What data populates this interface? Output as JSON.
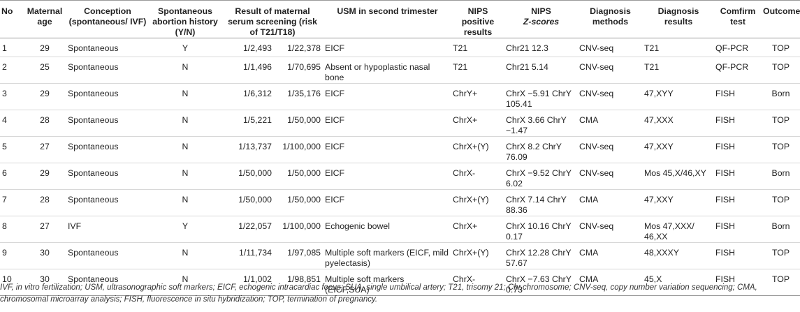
{
  "columns": [
    {
      "key": "no",
      "label": "No",
      "label_line2": ""
    },
    {
      "key": "age",
      "label": "Maternal age",
      "label_line2": ""
    },
    {
      "key": "conception",
      "label": "Conception (spontaneous/ IVF)",
      "label_line2": ""
    },
    {
      "key": "abortion",
      "label": "Spontaneous abortion history (Y/N)",
      "label_line2": ""
    },
    {
      "key": "serum",
      "label": "Result of maternal serum screening (risk of T21/T18)",
      "label_line2": ""
    },
    {
      "key": "usm",
      "label": "USM in second trimester",
      "label_line2": ""
    },
    {
      "key": "nips_pos",
      "label": "NIPS positive results",
      "label_line2": ""
    },
    {
      "key": "nips_z",
      "label": "NIPS",
      "label_line2": "Z-scores"
    },
    {
      "key": "methods",
      "label": "Diagnosis methods",
      "label_line2": ""
    },
    {
      "key": "results",
      "label": "Diagnosis results",
      "label_line2": ""
    },
    {
      "key": "confirm",
      "label": "Comfirm test",
      "label_line2": ""
    },
    {
      "key": "outcomes",
      "label": "Outcomes",
      "label_line2": ""
    }
  ],
  "rows": [
    {
      "no": "1",
      "age": "29",
      "conception": "Spontaneous",
      "abortion": "Y",
      "t21": "1/2,493",
      "t18": "1/22,378",
      "usm": "EICF",
      "nips_pos": "T21",
      "nips_z": "Chr21 12.3",
      "methods": "CNV-seq",
      "results": "T21",
      "confirm": "QF-PCR",
      "outcomes": "TOP"
    },
    {
      "no": "2",
      "age": "25",
      "conception": "Spontaneous",
      "abortion": "N",
      "t21": "1/1,496",
      "t18": "1/70,695",
      "usm": "Absent or hypoplastic nasal bone",
      "nips_pos": "T21",
      "nips_z": "Chr21 5.14",
      "methods": "CNV-seq",
      "results": "T21",
      "confirm": "QF-PCR",
      "outcomes": "TOP"
    },
    {
      "no": "3",
      "age": "29",
      "conception": "Spontaneous",
      "abortion": "N",
      "t21": "1/6,312",
      "t18": "1/35,176",
      "usm": "EICF",
      "nips_pos": "ChrY+",
      "nips_z": "ChrX −5.91 ChrY 105.41",
      "methods": "CNV-seq",
      "results": "47,XYY",
      "confirm": "FISH",
      "outcomes": "Born"
    },
    {
      "no": "4",
      "age": "28",
      "conception": "Spontaneous",
      "abortion": "N",
      "t21": "1/5,221",
      "t18": "1/50,000",
      "usm": "EICF",
      "nips_pos": "ChrX+",
      "nips_z": "ChrX 3.66 ChrY −1.47",
      "methods": "CMA",
      "results": "47,XXX",
      "confirm": "FISH",
      "outcomes": "TOP"
    },
    {
      "no": "5",
      "age": "27",
      "conception": "Spontaneous",
      "abortion": "N",
      "t21": "1/13,737",
      "t18": "1/100,000",
      "usm": "EICF",
      "nips_pos": "ChrX+(Y)",
      "nips_z": "ChrX 8.2 ChrY 76.09",
      "methods": "CNV-seq",
      "results": "47,XXY",
      "confirm": "FISH",
      "outcomes": "TOP"
    },
    {
      "no": "6",
      "age": "29",
      "conception": "Spontaneous",
      "abortion": "N",
      "t21": "1/50,000",
      "t18": "1/50,000",
      "usm": "EICF",
      "nips_pos": "ChrX-",
      "nips_z": "ChrX −9.52 ChrY 6.02",
      "methods": "CNV-seq",
      "results": "Mos 45,X/46,XY",
      "confirm": "FISH",
      "outcomes": "Born"
    },
    {
      "no": "7",
      "age": "28",
      "conception": "Spontaneous",
      "abortion": "N",
      "t21": "1/50,000",
      "t18": "1/50,000",
      "usm": "EICF",
      "nips_pos": "ChrX+(Y)",
      "nips_z": "ChrX 7.14 ChrY 88.36",
      "methods": "CMA",
      "results": "47,XXY",
      "confirm": "FISH",
      "outcomes": "TOP"
    },
    {
      "no": "8",
      "age": "27",
      "conception": "IVF",
      "abortion": "Y",
      "t21": "1/22,057",
      "t18": "1/100,000",
      "usm": "Echogenic bowel",
      "nips_pos": "ChrX+",
      "nips_z": "ChrX 10.16 ChrY 0.17",
      "methods": "CNV-seq",
      "results": "Mos 47,XXX/ 46,XX",
      "confirm": "FISH",
      "outcomes": "Born"
    },
    {
      "no": "9",
      "age": "30",
      "conception": "Spontaneous",
      "abortion": "N",
      "t21": "1/11,734",
      "t18": "1/97,085",
      "usm": "Multiple soft markers (EICF, mild pyelectasis)",
      "nips_pos": "ChrX+(Y)",
      "nips_z": "ChrX 12.28 ChrY 57.67",
      "methods": "CMA",
      "results": "48,XXXY",
      "confirm": "FISH",
      "outcomes": "TOP"
    },
    {
      "no": "10",
      "age": "30",
      "conception": "Spontaneous",
      "abortion": "N",
      "t21": "1/1,002",
      "t18": "1/98,851",
      "usm": "Multiple soft markers (EICF,SUA)",
      "nips_pos": "ChrX-",
      "nips_z": "ChrX −7.63 ChrY 0.73",
      "methods": "CMA",
      "results": "45,X",
      "confirm": "FISH",
      "outcomes": "TOP"
    }
  ],
  "footnote": "IVF, in vitro fertilization; USM, ultrasonographic soft markers; EICF, echogenic intracardiac focus; SUA, single umbilical artery; T21, trisomy 21; Chr,chromosome; CNV-seq, copy number variation sequencing; CMA, chromosomal microarray analysis; FISH, fluorescence in situ hybridization; TOP, termination of pregnancy."
}
